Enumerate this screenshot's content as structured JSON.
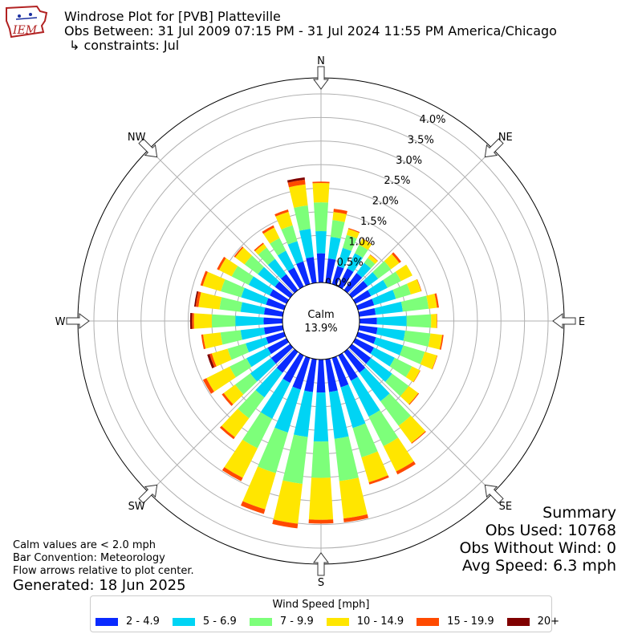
{
  "header": {
    "title": "Windrose Plot for [PVB] Platteville",
    "obs_between": "Obs Between: 31 Jul 2009 07:15 PM - 31 Jul 2024 11:55 PM America/Chicago",
    "constraints": "↳ constraints: Jul",
    "logo_text": "IEM"
  },
  "summary": {
    "title": "Summary",
    "obs_used": "Obs Used: 10768",
    "obs_without_wind": "Obs Without Wind: 0",
    "avg_speed": "Avg Speed: 6.3 mph"
  },
  "notes": {
    "calm_note": "Calm values are < 2.0 mph",
    "bar_convention": "Bar Convention: Meteorology",
    "flow_arrows": "Flow arrows relative to plot center.",
    "generated": "Generated: 18 Jun 2025"
  },
  "chart_data": {
    "type": "windrose",
    "calm_label": "Calm",
    "calm_value": "13.9%",
    "radial_unit": "%",
    "radial_ticks": [
      "0.0%",
      "0.5%",
      "1.0%",
      "1.5%",
      "2.0%",
      "2.5%",
      "3.0%",
      "3.5%",
      "4.0%"
    ],
    "compass_labels": [
      "N",
      "NE",
      "E",
      "SE",
      "S",
      "SW",
      "W",
      "NW"
    ],
    "legend_title": "Wind Speed [mph]",
    "bins": [
      {
        "label": "2 - 4.9",
        "color": "#0a2aff"
      },
      {
        "label": "5 - 6.9",
        "color": "#00d4f4"
      },
      {
        "label": "7 - 9.9",
        "color": "#7dff7a"
      },
      {
        "label": "10 - 14.9",
        "color": "#ffe600"
      },
      {
        "label": "15 - 19.9",
        "color": "#ff4a00"
      },
      {
        "label": "20+",
        "color": "#800000"
      }
    ],
    "direction_step_deg": 10,
    "directions": [
      {
        "dir": 0,
        "values": [
          0.62,
          0.47,
          0.61,
          0.41,
          0.03,
          0.0
        ]
      },
      {
        "dir": 10,
        "values": [
          0.52,
          0.46,
          0.36,
          0.17,
          0.07,
          0.0
        ]
      },
      {
        "dir": 20,
        "values": [
          0.4,
          0.4,
          0.29,
          0.13,
          0.02,
          0.0
        ]
      },
      {
        "dir": 30,
        "values": [
          0.43,
          0.36,
          0.2,
          0.14,
          0.01,
          0.0
        ]
      },
      {
        "dir": 40,
        "values": [
          0.45,
          0.27,
          0.13,
          0.08,
          0.01,
          0.0
        ]
      },
      {
        "dir": 50,
        "values": [
          0.42,
          0.27,
          0.34,
          0.22,
          0.05,
          0.0
        ]
      },
      {
        "dir": 60,
        "values": [
          0.37,
          0.39,
          0.32,
          0.27,
          0.0,
          0.0
        ]
      },
      {
        "dir": 70,
        "values": [
          0.36,
          0.48,
          0.33,
          0.23,
          0.01,
          0.0
        ]
      },
      {
        "dir": 80,
        "values": [
          0.35,
          0.58,
          0.55,
          0.18,
          0.04,
          0.0
        ]
      },
      {
        "dir": 90,
        "values": [
          0.37,
          0.63,
          0.52,
          0.12,
          0.01,
          0.0
        ]
      },
      {
        "dir": 100,
        "values": [
          0.39,
          0.59,
          0.54,
          0.25,
          0.03,
          0.0
        ]
      },
      {
        "dir": 110,
        "values": [
          0.4,
          0.6,
          0.48,
          0.27,
          0.01,
          0.0
        ]
      },
      {
        "dir": 120,
        "values": [
          0.44,
          0.49,
          0.41,
          0.19,
          0.01,
          0.0
        ]
      },
      {
        "dir": 130,
        "values": [
          0.5,
          0.56,
          0.44,
          0.25,
          0.02,
          0.0
        ]
      },
      {
        "dir": 140,
        "values": [
          0.55,
          0.75,
          0.65,
          0.45,
          0.02,
          0.0
        ]
      },
      {
        "dir": 150,
        "values": [
          0.6,
          0.85,
          0.7,
          0.6,
          0.07,
          0.0
        ]
      },
      {
        "dir": 160,
        "values": [
          0.65,
          0.9,
          0.65,
          0.55,
          0.05,
          0.0
        ]
      },
      {
        "dir": 170,
        "values": [
          0.7,
          1.0,
          0.9,
          0.8,
          0.08,
          0.0
        ]
      },
      {
        "dir": 180,
        "values": [
          0.7,
          1.04,
          0.77,
          0.89,
          0.08,
          0.0
        ]
      },
      {
        "dir": 190,
        "values": [
          0.7,
          0.96,
          1.0,
          0.85,
          0.1,
          0.0
        ]
      },
      {
        "dir": 200,
        "values": [
          0.7,
          0.95,
          0.9,
          0.8,
          0.1,
          0.0
        ]
      },
      {
        "dir": 210,
        "values": [
          0.65,
          0.85,
          0.7,
          0.7,
          0.08,
          0.0
        ]
      },
      {
        "dir": 220,
        "values": [
          0.55,
          0.65,
          0.55,
          0.5,
          0.05,
          0.0
        ]
      },
      {
        "dir": 230,
        "values": [
          0.5,
          0.55,
          0.4,
          0.3,
          0.05,
          0.0
        ]
      },
      {
        "dir": 240,
        "values": [
          0.45,
          0.5,
          0.4,
          0.55,
          0.08,
          0.0
        ]
      },
      {
        "dir": 250,
        "values": [
          0.4,
          0.45,
          0.4,
          0.35,
          0.05,
          0.05
        ]
      },
      {
        "dir": 260,
        "values": [
          0.4,
          0.5,
          0.43,
          0.37,
          0.04,
          0.0
        ]
      },
      {
        "dir": 270,
        "values": [
          0.4,
          0.6,
          0.5,
          0.38,
          0.04,
          0.04
        ]
      },
      {
        "dir": 280,
        "values": [
          0.4,
          0.5,
          0.45,
          0.45,
          0.06,
          0.03
        ]
      },
      {
        "dir": 290,
        "values": [
          0.4,
          0.55,
          0.45,
          0.4,
          0.05,
          0.0
        ]
      },
      {
        "dir": 300,
        "values": [
          0.4,
          0.5,
          0.4,
          0.3,
          0.05,
          0.0
        ]
      },
      {
        "dir": 310,
        "values": [
          0.4,
          0.45,
          0.35,
          0.25,
          0.03,
          0.0
        ]
      },
      {
        "dir": 320,
        "values": [
          0.42,
          0.4,
          0.3,
          0.1,
          0.03,
          0.0
        ]
      },
      {
        "dir": 330,
        "values": [
          0.45,
          0.4,
          0.3,
          0.25,
          0.05,
          0.0
        ]
      },
      {
        "dir": 340,
        "values": [
          0.5,
          0.45,
          0.35,
          0.3,
          0.05,
          0.0
        ]
      },
      {
        "dir": 350,
        "values": [
          0.55,
          0.6,
          0.5,
          0.45,
          0.1,
          0.05
        ]
      }
    ]
  }
}
